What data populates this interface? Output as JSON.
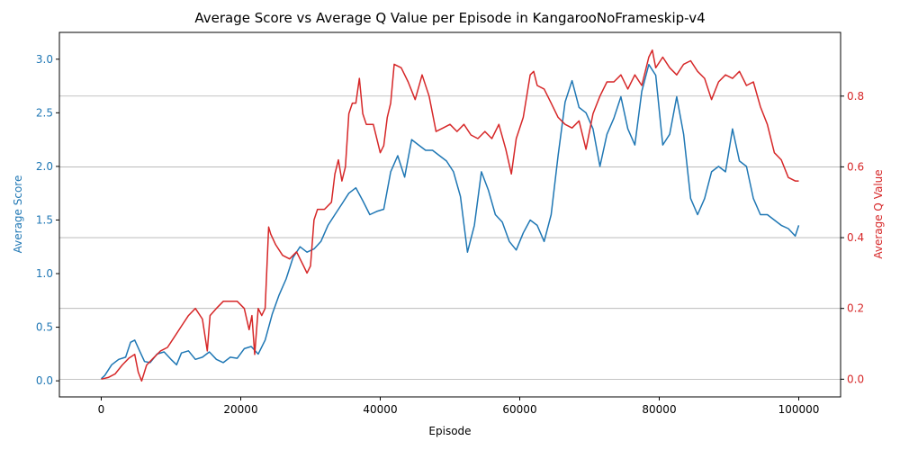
{
  "chart_data": {
    "type": "line",
    "title": "Average Score vs Average Q Value per Episode in KangarooNoFrameskip-v4",
    "xlabel": "Episode",
    "ylabel_left": "Average Score",
    "ylabel_right": "Average Q Value",
    "xlim": [
      -6000,
      106000
    ],
    "ylim_left": [
      -0.15,
      3.25
    ],
    "ylim_right": [
      -0.05,
      0.98
    ],
    "xticks": [
      0,
      20000,
      40000,
      60000,
      80000,
      100000
    ],
    "xtick_labels": [
      "0",
      "20000",
      "40000",
      "60000",
      "80000",
      "100000"
    ],
    "yticks_left": [
      0.0,
      0.5,
      1.0,
      1.5,
      2.0,
      2.5,
      3.0
    ],
    "ytick_labels_left": [
      "0.0",
      "0.5",
      "1.0",
      "1.5",
      "2.0",
      "2.5",
      "3.0"
    ],
    "yticks_right": [
      0.0,
      0.2,
      0.4,
      0.6,
      0.8
    ],
    "ytick_labels_right": [
      "0.0",
      "0.2",
      "0.4",
      "0.6",
      "0.8"
    ],
    "grid": "right-axis horizontal",
    "colors": {
      "score": "#1f77b4",
      "q": "#d62728",
      "grid": "#b0b0b0",
      "text": "#000000"
    },
    "series": [
      {
        "name": "Average Score",
        "axis": "left",
        "color": "#1f77b4",
        "x": [
          0,
          500,
          1500,
          2500,
          3500,
          4200,
          4800,
          5500,
          6200,
          7000,
          8000,
          9000,
          10000,
          10800,
          11500,
          12500,
          13500,
          14500,
          15500,
          16500,
          17500,
          18500,
          19500,
          20500,
          21500,
          22500,
          23500,
          24500,
          25500,
          26500,
          27500,
          28500,
          29500,
          30500,
          31500,
          32500,
          33500,
          34500,
          35500,
          36500,
          37500,
          38500,
          39500,
          40500,
          41500,
          42500,
          43500,
          44500,
          45500,
          46500,
          47500,
          48500,
          49500,
          50500,
          51500,
          52500,
          53500,
          54500,
          55500,
          56500,
          57500,
          58500,
          59500,
          60500,
          61500,
          62500,
          63500,
          64500,
          65500,
          66500,
          67500,
          68500,
          69500,
          70500,
          71500,
          72500,
          73500,
          74500,
          75500,
          76500,
          77500,
          78500,
          79500,
          80500,
          81500,
          82500,
          83500,
          84500,
          85500,
          86500,
          87500,
          88500,
          89500,
          90500,
          91500,
          92500,
          93500,
          94500,
          95500,
          96500,
          97500,
          98500,
          99500,
          100000
        ],
        "values": [
          0.02,
          0.05,
          0.15,
          0.2,
          0.22,
          0.36,
          0.38,
          0.28,
          0.18,
          0.17,
          0.25,
          0.27,
          0.2,
          0.15,
          0.26,
          0.28,
          0.2,
          0.22,
          0.27,
          0.2,
          0.17,
          0.22,
          0.21,
          0.3,
          0.32,
          0.25,
          0.38,
          0.62,
          0.8,
          0.95,
          1.15,
          1.25,
          1.2,
          1.23,
          1.3,
          1.45,
          1.55,
          1.65,
          1.75,
          1.8,
          1.68,
          1.55,
          1.58,
          1.6,
          1.95,
          2.1,
          1.9,
          2.25,
          2.2,
          2.15,
          2.15,
          2.1,
          2.05,
          1.95,
          1.72,
          1.2,
          1.45,
          1.95,
          1.78,
          1.55,
          1.48,
          1.3,
          1.22,
          1.38,
          1.5,
          1.45,
          1.3,
          1.55,
          2.1,
          2.6,
          2.8,
          2.55,
          2.5,
          2.35,
          2.0,
          2.3,
          2.45,
          2.65,
          2.35,
          2.2,
          2.7,
          2.95,
          2.85,
          2.2,
          2.3,
          2.65,
          2.3,
          1.7,
          1.55,
          1.7,
          1.95,
          2.0,
          1.95,
          2.35,
          2.05,
          2.0,
          1.7,
          1.55,
          1.55,
          1.5,
          1.45,
          1.42,
          1.35,
          1.45
        ]
      },
      {
        "name": "Average Q Value",
        "axis": "right",
        "color": "#d62728",
        "x": [
          0,
          1000,
          2000,
          3000,
          4000,
          4800,
          5300,
          5800,
          6500,
          7500,
          8500,
          9500,
          10500,
          11500,
          12500,
          13500,
          14500,
          15200,
          15600,
          16500,
          17500,
          18500,
          19500,
          20500,
          21200,
          21600,
          22000,
          22500,
          23000,
          23500,
          24000,
          24300,
          25000,
          26000,
          27000,
          28000,
          29000,
          29500,
          30000,
          30500,
          31000,
          32000,
          33000,
          33500,
          34000,
          34500,
          35000,
          35500,
          36000,
          36500,
          37000,
          37500,
          38000,
          39000,
          40000,
          40500,
          41000,
          41500,
          42000,
          43000,
          44000,
          45000,
          46000,
          47000,
          48000,
          49000,
          50000,
          51000,
          52000,
          53000,
          54000,
          55000,
          56000,
          57000,
          58000,
          58800,
          59500,
          60500,
          61500,
          62000,
          62500,
          63500,
          64500,
          65500,
          66500,
          67500,
          68500,
          69500,
          70500,
          71500,
          72500,
          73500,
          74500,
          75500,
          76500,
          77500,
          78500,
          79000,
          79500,
          80500,
          81500,
          82500,
          83500,
          84500,
          85500,
          86500,
          87500,
          88500,
          89500,
          90500,
          91500,
          92500,
          93500,
          94500,
          95500,
          96500,
          97500,
          98500,
          99500,
          100000
        ],
        "values": [
          0.0,
          0.005,
          0.015,
          0.04,
          0.06,
          0.07,
          0.02,
          -0.005,
          0.04,
          0.06,
          0.08,
          0.09,
          0.12,
          0.15,
          0.18,
          0.2,
          0.17,
          0.08,
          0.18,
          0.2,
          0.22,
          0.22,
          0.22,
          0.2,
          0.14,
          0.18,
          0.07,
          0.2,
          0.18,
          0.2,
          0.43,
          0.41,
          0.38,
          0.35,
          0.34,
          0.36,
          0.32,
          0.3,
          0.32,
          0.45,
          0.48,
          0.48,
          0.5,
          0.58,
          0.62,
          0.56,
          0.6,
          0.75,
          0.78,
          0.78,
          0.85,
          0.75,
          0.72,
          0.72,
          0.64,
          0.66,
          0.74,
          0.78,
          0.89,
          0.88,
          0.84,
          0.79,
          0.86,
          0.8,
          0.7,
          0.71,
          0.72,
          0.7,
          0.72,
          0.69,
          0.68,
          0.7,
          0.68,
          0.72,
          0.65,
          0.58,
          0.68,
          0.74,
          0.86,
          0.87,
          0.83,
          0.82,
          0.78,
          0.74,
          0.72,
          0.71,
          0.73,
          0.65,
          0.75,
          0.8,
          0.84,
          0.84,
          0.86,
          0.82,
          0.86,
          0.83,
          0.91,
          0.93,
          0.88,
          0.91,
          0.88,
          0.86,
          0.89,
          0.9,
          0.87,
          0.85,
          0.79,
          0.84,
          0.86,
          0.85,
          0.87,
          0.83,
          0.84,
          0.77,
          0.72,
          0.64,
          0.62,
          0.57,
          0.56,
          0.56
        ]
      }
    ]
  }
}
